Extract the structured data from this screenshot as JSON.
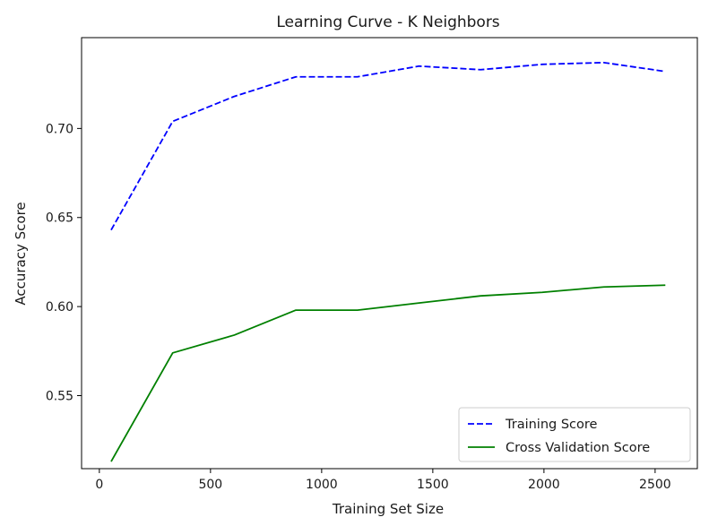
{
  "chart_data": {
    "type": "line",
    "title": "Learning Curve - K Neighbors",
    "xlabel": "Training Set Size",
    "ylabel": "Accuracy Score",
    "xlim": [
      -80,
      2690
    ],
    "ylim": [
      0.509,
      0.751
    ],
    "x_ticks": [
      0,
      500,
      1000,
      1500,
      2000,
      2500
    ],
    "y_ticks": [
      0.55,
      0.6,
      0.65,
      0.7
    ],
    "x_tick_labels": [
      "0",
      "500",
      "1000",
      "1500",
      "2000",
      "2500"
    ],
    "y_tick_labels": [
      "0.55",
      "0.60",
      "0.65",
      "0.70"
    ],
    "x": [
      53,
      330,
      607,
      884,
      1161,
      1438,
      1715,
      1992,
      2269,
      2546
    ],
    "series": [
      {
        "name": "Training Score",
        "color": "#0000ff",
        "style": "dashed",
        "values": [
          0.643,
          0.704,
          0.718,
          0.729,
          0.729,
          0.735,
          0.733,
          0.736,
          0.737,
          0.732
        ]
      },
      {
        "name": "Cross Validation Score",
        "color": "#008000",
        "style": "solid",
        "values": [
          0.513,
          0.574,
          0.584,
          0.598,
          0.598,
          0.602,
          0.606,
          0.608,
          0.611,
          0.612
        ]
      }
    ],
    "legend_position": "bottom-right",
    "grid": false
  }
}
